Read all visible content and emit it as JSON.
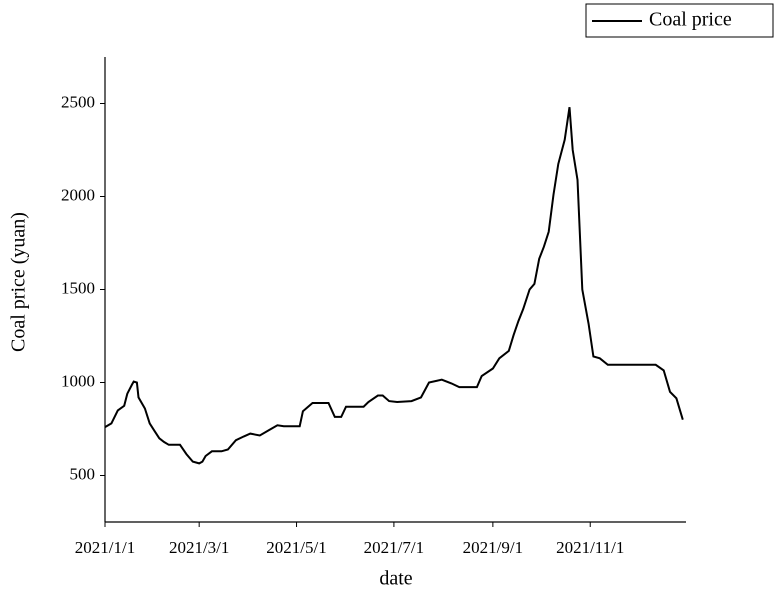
{
  "chart_data": {
    "type": "line",
    "x_label": "date",
    "y_label": "Coal price (yuan)",
    "legend": "upper right",
    "xlim": [
      "2021/1/1",
      "2021/12/31"
    ],
    "xticks": [
      "2021/1/1",
      "2021/3/1",
      "2021/5/1",
      "2021/7/1",
      "2021/9/1",
      "2021/11/1"
    ],
    "ylim": [
      250,
      2750
    ],
    "yticks": [
      500,
      1000,
      1500,
      2000,
      2500
    ],
    "x": [
      "2021/1/1",
      "2021/1/5",
      "2021/1/9",
      "2021/1/13",
      "2021/1/15",
      "2021/1/18",
      "2021/1/19",
      "2021/1/21",
      "2021/1/22",
      "2021/1/26",
      "2021/1/29",
      "2021/2/1",
      "2021/2/4",
      "2021/2/7",
      "2021/2/10",
      "2021/2/17",
      "2021/2/21",
      "2021/2/25",
      "2021/3/1",
      "2021/3/3",
      "2021/3/5",
      "2021/3/9",
      "2021/3/15",
      "2021/3/19",
      "2021/3/24",
      "2021/3/29",
      "2021/4/2",
      "2021/4/8",
      "2021/4/14",
      "2021/4/19",
      "2021/4/23",
      "2021/5/3",
      "2021/5/5",
      "2021/5/11",
      "2021/5/21",
      "2021/5/25",
      "2021/5/29",
      "2021/6/1",
      "2021/6/12",
      "2021/6/15",
      "2021/6/21",
      "2021/6/24",
      "2021/6/28",
      "2021/7/3",
      "2021/7/12",
      "2021/7/18",
      "2021/7/23",
      "2021/7/31",
      "2021/8/6",
      "2021/8/11",
      "2021/8/22",
      "2021/8/25",
      "2021/9/1",
      "2021/9/5",
      "2021/9/11",
      "2021/9/14",
      "2021/9/17",
      "2021/9/20",
      "2021/9/24",
      "2021/9/27",
      "2021/9/30",
      "2021/10/3",
      "2021/10/6",
      "2021/10/9",
      "2021/10/12",
      "2021/10/16",
      "2021/10/19",
      "2021/10/21",
      "2021/10/24",
      "2021/10/27",
      "2021/10/31",
      "2021/11/3",
      "2021/11/7",
      "2021/11/12",
      "2021/12/12",
      "2021/12/17",
      "2021/12/21",
      "2021/12/25",
      "2021/12/29"
    ],
    "series": [
      {
        "name": "Coal price",
        "color": "#000000",
        "values": [
          760,
          780,
          850,
          875,
          940,
          990,
          1005,
          1000,
          920,
          860,
          780,
          740,
          700,
          680,
          665,
          665,
          615,
          575,
          565,
          575,
          605,
          630,
          630,
          640,
          690,
          710,
          725,
          715,
          745,
          770,
          765,
          765,
          845,
          890,
          890,
          815,
          815,
          870,
          870,
          895,
          930,
          930,
          900,
          895,
          900,
          920,
          1000,
          1015,
          995,
          975,
          975,
          1035,
          1075,
          1130,
          1170,
          1255,
          1330,
          1395,
          1500,
          1530,
          1665,
          1730,
          1810,
          2010,
          2175,
          2305,
          2480,
          2250,
          2090,
          1500,
          1315,
          1140,
          1130,
          1095,
          1095,
          1065,
          950,
          915,
          800
        ]
      }
    ]
  }
}
